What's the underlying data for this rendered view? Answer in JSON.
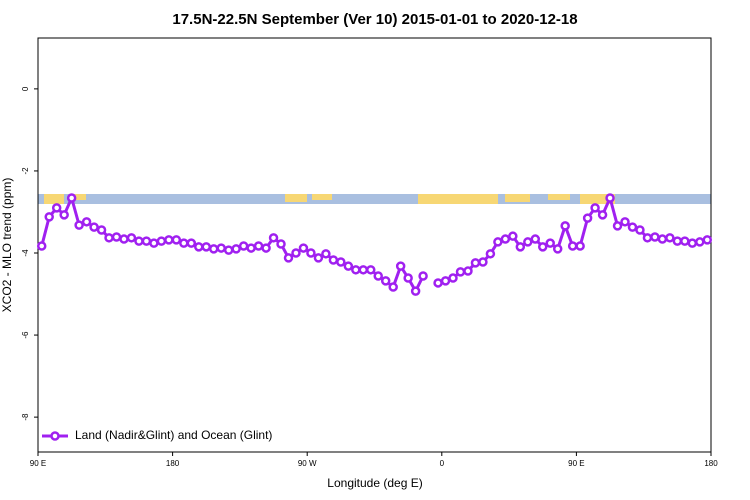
{
  "chart_data": {
    "type": "line",
    "title": "17.5N-22.5N September (Ver 10)   2015-01-01 to 2020-12-18",
    "x_label": "Longitude (deg E)",
    "y_label": "XCO2 - MLO trend (ppm)",
    "x": [
      92.5,
      97.5,
      102.5,
      107.5,
      112.5,
      117.5,
      122.5,
      127.5,
      132.5,
      137.5,
      142.5,
      147.5,
      152.5,
      157.5,
      162.5,
      167.5,
      172.5,
      177.5,
      182.5,
      187.5,
      192.5,
      197.5,
      202.5,
      207.5,
      212.5,
      217.5,
      222.5,
      227.5,
      232.5,
      237.5,
      242.5,
      247.5,
      252.5,
      257.5,
      262.5,
      267.5,
      272.5,
      277.5,
      282.5,
      287.5,
      292.5,
      297.5,
      302.5,
      307.5,
      312.5,
      317.5,
      322.5,
      327.5,
      332.5,
      337.5,
      342.5,
      347.5,
      352.5,
      357.5,
      362.5,
      367.5,
      372.5,
      377.5,
      382.5,
      387.5,
      392.5,
      397.5,
      402.5,
      407.5,
      412.5,
      417.5,
      422.5,
      427.5,
      432.5,
      437.5,
      442.5,
      447.5,
      452.5,
      457.5,
      462.5,
      467.5,
      472.5,
      477.5,
      482.5,
      487.5,
      492.5,
      497.5,
      502.5,
      507.5,
      512.5,
      517.5,
      522.5,
      527.5,
      532.5,
      537.5
    ],
    "series": [
      {
        "name": "Land (Nadir&Glint) and Ocean (Glint)",
        "color": "#a020f0",
        "values": [
          -3.83,
          -3.12,
          -2.9,
          -3.07,
          -2.66,
          -3.32,
          -3.24,
          -3.37,
          -3.44,
          -3.63,
          -3.61,
          -3.66,
          -3.63,
          -3.71,
          -3.71,
          -3.76,
          -3.71,
          -3.68,
          -3.68,
          -3.76,
          -3.76,
          -3.85,
          -3.85,
          -3.9,
          -3.88,
          -3.93,
          -3.9,
          -3.83,
          -3.88,
          -3.83,
          -3.88,
          -3.63,
          -3.78,
          -4.12,
          -4.0,
          -3.88,
          -4.0,
          -4.12,
          -4.02,
          -4.17,
          -4.22,
          -4.32,
          -4.41,
          -4.41,
          -4.41,
          -4.56,
          -4.68,
          -4.83,
          -4.32,
          -4.61,
          -4.93,
          -4.56,
          null,
          -4.73,
          -4.68,
          -4.61,
          -4.46,
          -4.44,
          -4.24,
          -4.22,
          -4.02,
          -3.73,
          -3.66,
          -3.59,
          -3.85,
          -3.73,
          -3.66,
          -3.85,
          -3.76,
          -3.9,
          -3.34,
          -3.83,
          -3.83,
          -3.15,
          -2.9,
          -3.07,
          -2.66,
          -3.34,
          -3.24,
          -3.37,
          -3.44,
          -3.63,
          -3.61,
          -3.66,
          -3.63,
          -3.71,
          -3.71,
          -3.76,
          -3.73,
          -3.68
        ]
      }
    ],
    "xlim": [
      90,
      540
    ],
    "xticks": [
      {
        "value": 90,
        "label": "90 E"
      },
      {
        "value": 180,
        "label": "180"
      },
      {
        "value": 270,
        "label": "90 W"
      },
      {
        "value": 360,
        "label": "0"
      },
      {
        "value": 450,
        "label": "90 E"
      },
      {
        "value": 540,
        "label": "180"
      }
    ],
    "ylim": [
      -8.85,
      1.24
    ],
    "yticks": [
      0,
      -2,
      -4,
      -6,
      -8
    ],
    "legend": "bottom-left"
  }
}
